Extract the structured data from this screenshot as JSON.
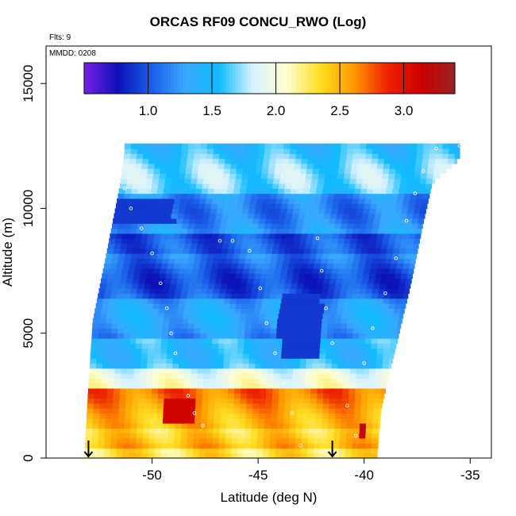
{
  "chart_data": {
    "type": "heatmap",
    "title": "ORCAS RF09 CONCU_RWO (Log)",
    "flights_label": "Flts: 9",
    "date_label": "MMDD: 0208",
    "xlabel": "Latitude (deg N)",
    "ylabel": "Altitude (m)",
    "xlim": [
      -55,
      -34
    ],
    "ylim": [
      0,
      16500
    ],
    "x_ticks": [
      -50,
      -45,
      -40,
      -35
    ],
    "x_tick_labels": [
      "-50",
      "-45",
      "-40",
      "-35"
    ],
    "y_ticks": [
      0,
      5000,
      10000,
      15000
    ],
    "y_tick_labels": [
      "0",
      "5000",
      "10000",
      "15000"
    ],
    "colorbar": {
      "range": [
        0.5,
        3.4
      ],
      "ticks": [
        1.0,
        1.5,
        2.0,
        2.5,
        3.0
      ],
      "tick_labels": [
        "1.0",
        "1.5",
        "2.0",
        "2.5",
        "3.0"
      ],
      "colors": [
        "#7a1fe6",
        "#0b12b8",
        "#1a5ee8",
        "#3aa8ff",
        "#11bbff",
        "#d8f2ff",
        "#ffffd0",
        "#ffdd22",
        "#ff9900",
        "#ee2200",
        "#cc0000",
        "#992222"
      ]
    },
    "domain": {
      "altitude_top": 12600,
      "left_edge": [
        [
          0,
          -53.2
        ],
        [
          3000,
          -53.0
        ],
        [
          5500,
          -52.8
        ],
        [
          8000,
          -52.2
        ],
        [
          11000,
          -51.5
        ],
        [
          12300,
          -51.3
        ]
      ],
      "right_edge": [
        [
          0,
          -39.4
        ],
        [
          2000,
          -39.2
        ],
        [
          4500,
          -38.5
        ],
        [
          7000,
          -37.8
        ],
        [
          9500,
          -37.2
        ],
        [
          11000,
          -36.8
        ],
        [
          12000,
          -35.5
        ]
      ]
    },
    "layers": [
      {
        "alt": [
          0,
          500
        ],
        "value": 2.2
      },
      {
        "alt": [
          500,
          1200
        ],
        "value": 2.45
      },
      {
        "alt": [
          1200,
          2800
        ],
        "value": 2.6
      },
      {
        "alt": [
          2800,
          3600
        ],
        "value": 1.9
      },
      {
        "alt": [
          3600,
          4800
        ],
        "value": 1.6
      },
      {
        "alt": [
          4800,
          6500
        ],
        "value": 1.25
      },
      {
        "alt": [
          6500,
          8200
        ],
        "value": 1.05
      },
      {
        "alt": [
          8200,
          9000
        ],
        "value": 0.9
      },
      {
        "alt": [
          9000,
          10600
        ],
        "value": 1.25
      },
      {
        "alt": [
          10600,
          12600
        ],
        "value": 1.6
      }
    ],
    "features": [
      {
        "lat": [
          -49.5,
          -48.0
        ],
        "alt": [
          1500,
          2400
        ],
        "value": 3.1
      },
      {
        "lat": [
          -40.2,
          -39.8
        ],
        "alt": [
          900,
          1300
        ],
        "value": 3.2
      },
      {
        "lat": [
          -43.4,
          -42.8
        ],
        "alt": [
          4200,
          5000
        ],
        "value": 0.6
      },
      {
        "lat": [
          -44.0,
          -42.0
        ],
        "alt": [
          4000,
          6500
        ],
        "value": 0.9
      },
      {
        "lat": [
          -52.0,
          -49.0
        ],
        "alt": [
          9500,
          10300
        ],
        "value": 0.9
      }
    ],
    "flight_track": [
      [
        -51.8,
        12200
      ],
      [
        -51.6,
        11600
      ],
      [
        -51.3,
        10800
      ],
      [
        -51.0,
        10000
      ],
      [
        -50.5,
        9200
      ],
      [
        -50.0,
        8200
      ],
      [
        -49.6,
        7000
      ],
      [
        -49.3,
        6000
      ],
      [
        -49.1,
        5000
      ],
      [
        -48.9,
        4200
      ],
      [
        -48.6,
        3300
      ],
      [
        -48.3,
        2500
      ],
      [
        -48.0,
        1800
      ],
      [
        -47.6,
        1300
      ],
      [
        -46.8,
        8700
      ],
      [
        -46.2,
        8700
      ],
      [
        -45.4,
        8300
      ],
      [
        -44.9,
        6800
      ],
      [
        -44.6,
        5400
      ],
      [
        -44.2,
        4200
      ],
      [
        -43.8,
        3000
      ],
      [
        -43.4,
        1800
      ],
      [
        -43.0,
        500
      ],
      [
        -42.2,
        8800
      ],
      [
        -42.0,
        7500
      ],
      [
        -41.8,
        6000
      ],
      [
        -41.5,
        4600
      ],
      [
        -41.2,
        3400
      ],
      [
        -40.8,
        2100
      ],
      [
        -40.4,
        900
      ],
      [
        -40.0,
        3800
      ],
      [
        -39.6,
        5200
      ],
      [
        -39.0,
        6600
      ],
      [
        -38.5,
        8000
      ],
      [
        -38.0,
        9500
      ],
      [
        -37.6,
        10600
      ],
      [
        -37.2,
        11500
      ],
      [
        -36.6,
        12400
      ],
      [
        -35.5,
        12500
      ]
    ],
    "arrows_lat": [
      -53.0,
      -41.5
    ],
    "legend": "none",
    "grid": false
  }
}
